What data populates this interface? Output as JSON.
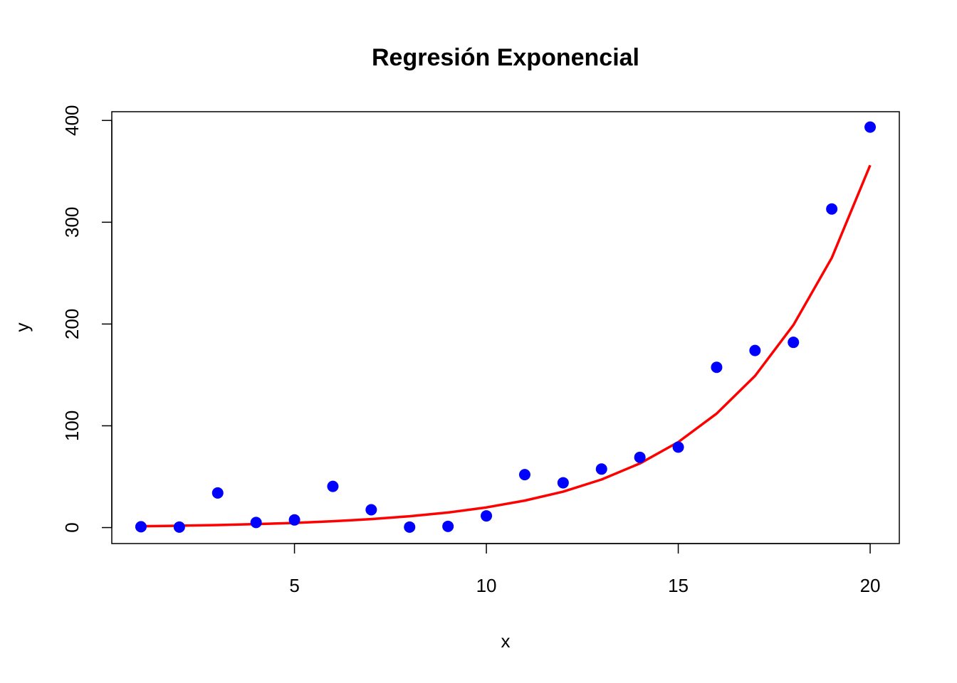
{
  "chart_data": {
    "type": "scatter",
    "title": "Regresión Exponencial",
    "xlabel": "x",
    "ylabel": "y",
    "xlim": [
      0.24,
      20.76
    ],
    "ylim": [
      -15.7,
      408.6
    ],
    "x_ticks": [
      5,
      10,
      15,
      20
    ],
    "y_ticks": [
      0,
      100,
      200,
      300,
      400
    ],
    "grid": false,
    "legend": "none",
    "series": [
      {
        "kind": "points",
        "color": "#0000ff",
        "x": [
          1,
          2,
          3,
          4,
          5,
          6,
          7,
          8,
          9,
          10,
          11,
          12,
          13,
          14,
          15,
          16,
          17,
          18,
          19,
          20
        ],
        "y": [
          0.8,
          0.5,
          34,
          5,
          7.5,
          40.5,
          17.5,
          0.5,
          1.2,
          11.5,
          52,
          44,
          57.5,
          69,
          79,
          157.5,
          174,
          182,
          313,
          393.5
        ]
      },
      {
        "kind": "line",
        "color": "#ff0000",
        "x": [
          1,
          2,
          3,
          4,
          5,
          6,
          7,
          8,
          9,
          10,
          11,
          12,
          13,
          14,
          15,
          16,
          17,
          18,
          19,
          20
        ],
        "y": [
          1.3,
          1.8,
          2.5,
          3.4,
          4.6,
          6.2,
          8.3,
          11.1,
          14.8,
          19.8,
          26.5,
          35.3,
          47.2,
          63,
          84,
          112,
          149,
          199,
          265,
          356
        ]
      }
    ]
  }
}
